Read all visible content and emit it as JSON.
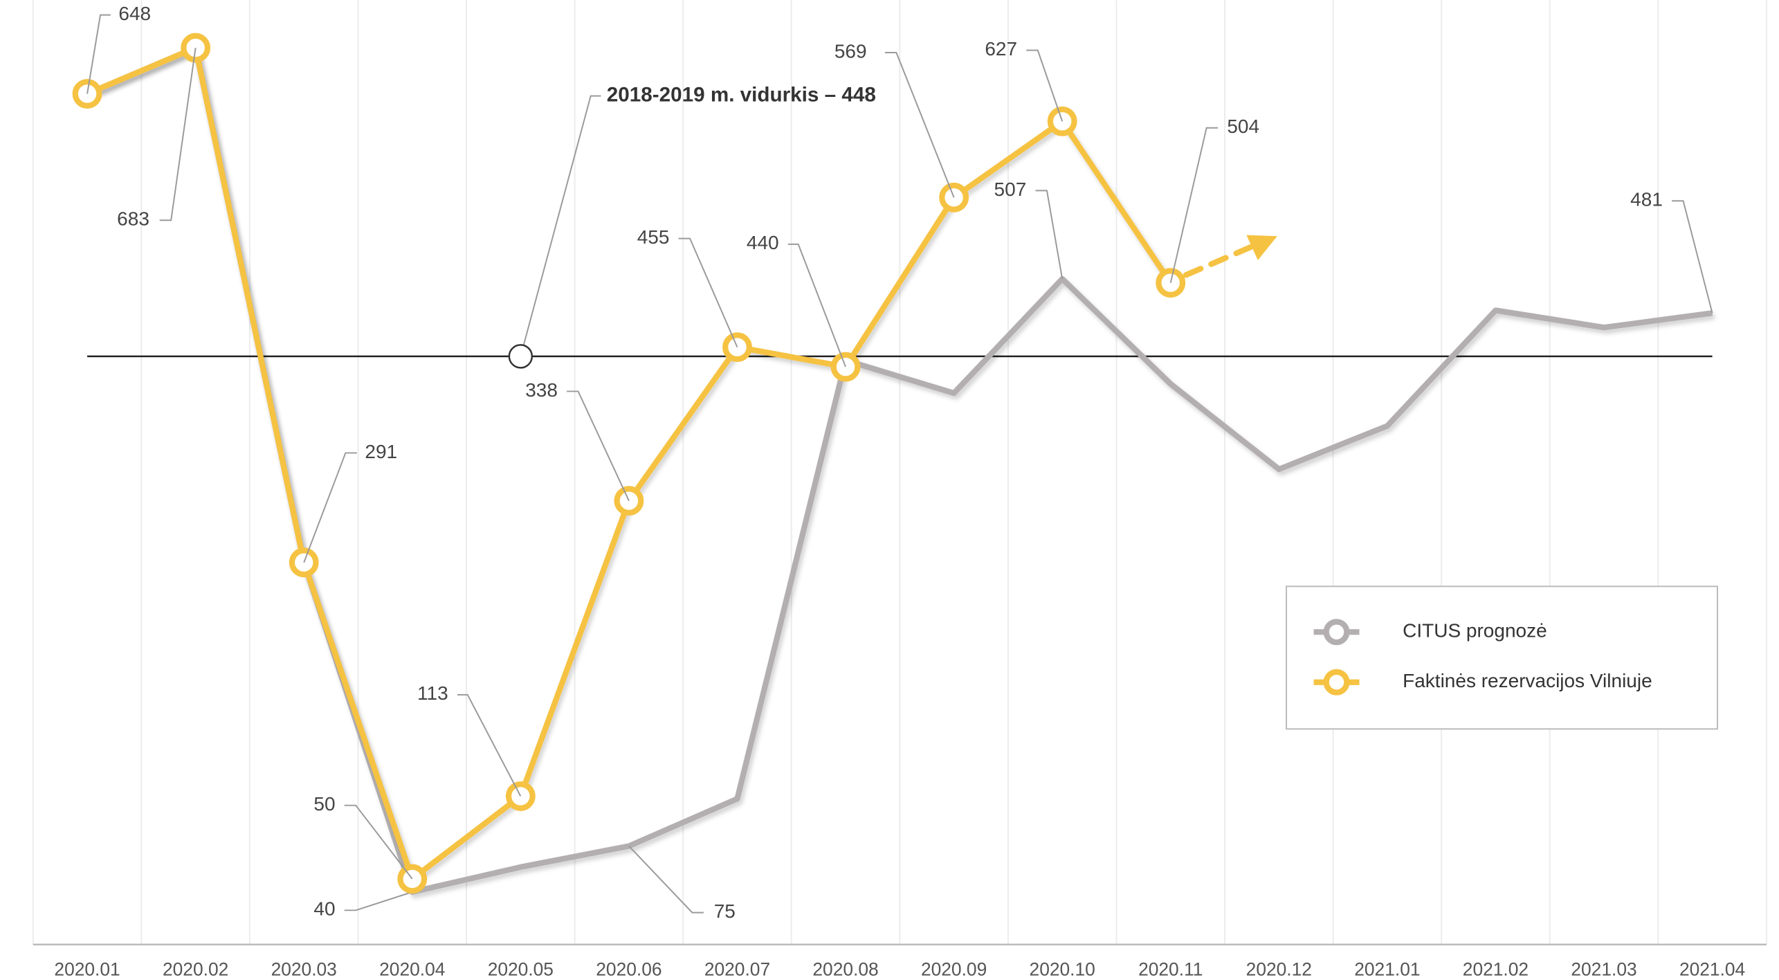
{
  "chart_data": {
    "type": "line",
    "categories": [
      "2020.01",
      "2020.02",
      "2020.03",
      "2020.04",
      "2020.05",
      "2020.06",
      "2020.07",
      "2020.08",
      "2020.09",
      "2020.10",
      "2020.11",
      "2020.12",
      "2021.01",
      "2021.02",
      "2021.03",
      "2021.04"
    ],
    "series": [
      {
        "name": "CITUS prognozė",
        "color": "#b3afb0",
        "values": [
          648,
          683,
          291,
          40,
          59,
          75,
          111,
          445,
          420,
          507,
          427,
          362,
          395,
          483,
          470,
          481
        ],
        "value_labels": [
          null,
          null,
          null,
          "40",
          null,
          "75",
          null,
          null,
          null,
          "507",
          null,
          null,
          null,
          null,
          null,
          "481"
        ]
      },
      {
        "name": "Faktinės rezervacijos Vilniuje",
        "color": "#f5c242",
        "values": [
          648,
          683,
          291,
          50,
          113,
          338,
          455,
          440,
          569,
          627,
          504,
          null,
          null,
          null,
          null,
          null
        ],
        "value_labels": [
          "648",
          "683",
          "291",
          "50",
          "113",
          "338",
          "455",
          "440",
          "569",
          "627",
          "504",
          null,
          null,
          null,
          null,
          null
        ]
      }
    ],
    "reference": {
      "value": 448,
      "label": "2018-2019 m. vidurkis – 448"
    },
    "ylim": [
      0,
      715
    ],
    "legend": "lower right"
  }
}
